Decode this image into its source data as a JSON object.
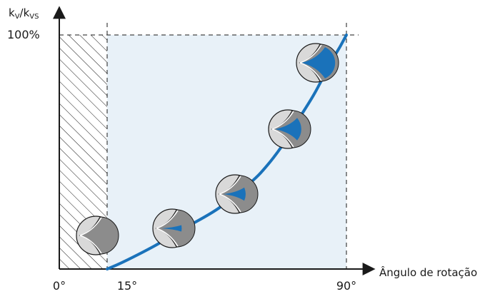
{
  "chart_data": {
    "type": "line",
    "ylabel_base": "k",
    "ylabel_sub1": "V",
    "ylabel_mid": "/k",
    "ylabel_sub2": "VS",
    "xlabel": "Ângulo de rotação",
    "y_max_label": "100%",
    "x_ticks": [
      "0°",
      "15°",
      "90°"
    ],
    "xlim": [
      0,
      90
    ],
    "ylim": [
      0,
      100
    ],
    "blocked_range": [
      0,
      15
    ],
    "control_range": [
      15,
      90
    ],
    "series": [
      {
        "x": [
          15,
          20,
          30,
          40,
          50,
          60,
          65,
          70,
          75,
          80,
          85,
          88,
          90
        ],
        "y": [
          0,
          3,
          10,
          18,
          26,
          37,
          44,
          53,
          64,
          75,
          88,
          95,
          100
        ]
      }
    ],
    "valve_openings": [
      0,
      0.12,
      0.35,
      0.65,
      0.95
    ],
    "colors": {
      "curve": "#1a72ba",
      "region": "#e8f1f8",
      "axis": "#1a1a1a",
      "valve_body": "#d9d9d9",
      "valve_disc": "#8c8c8c",
      "flow": "#1a72ba"
    }
  }
}
